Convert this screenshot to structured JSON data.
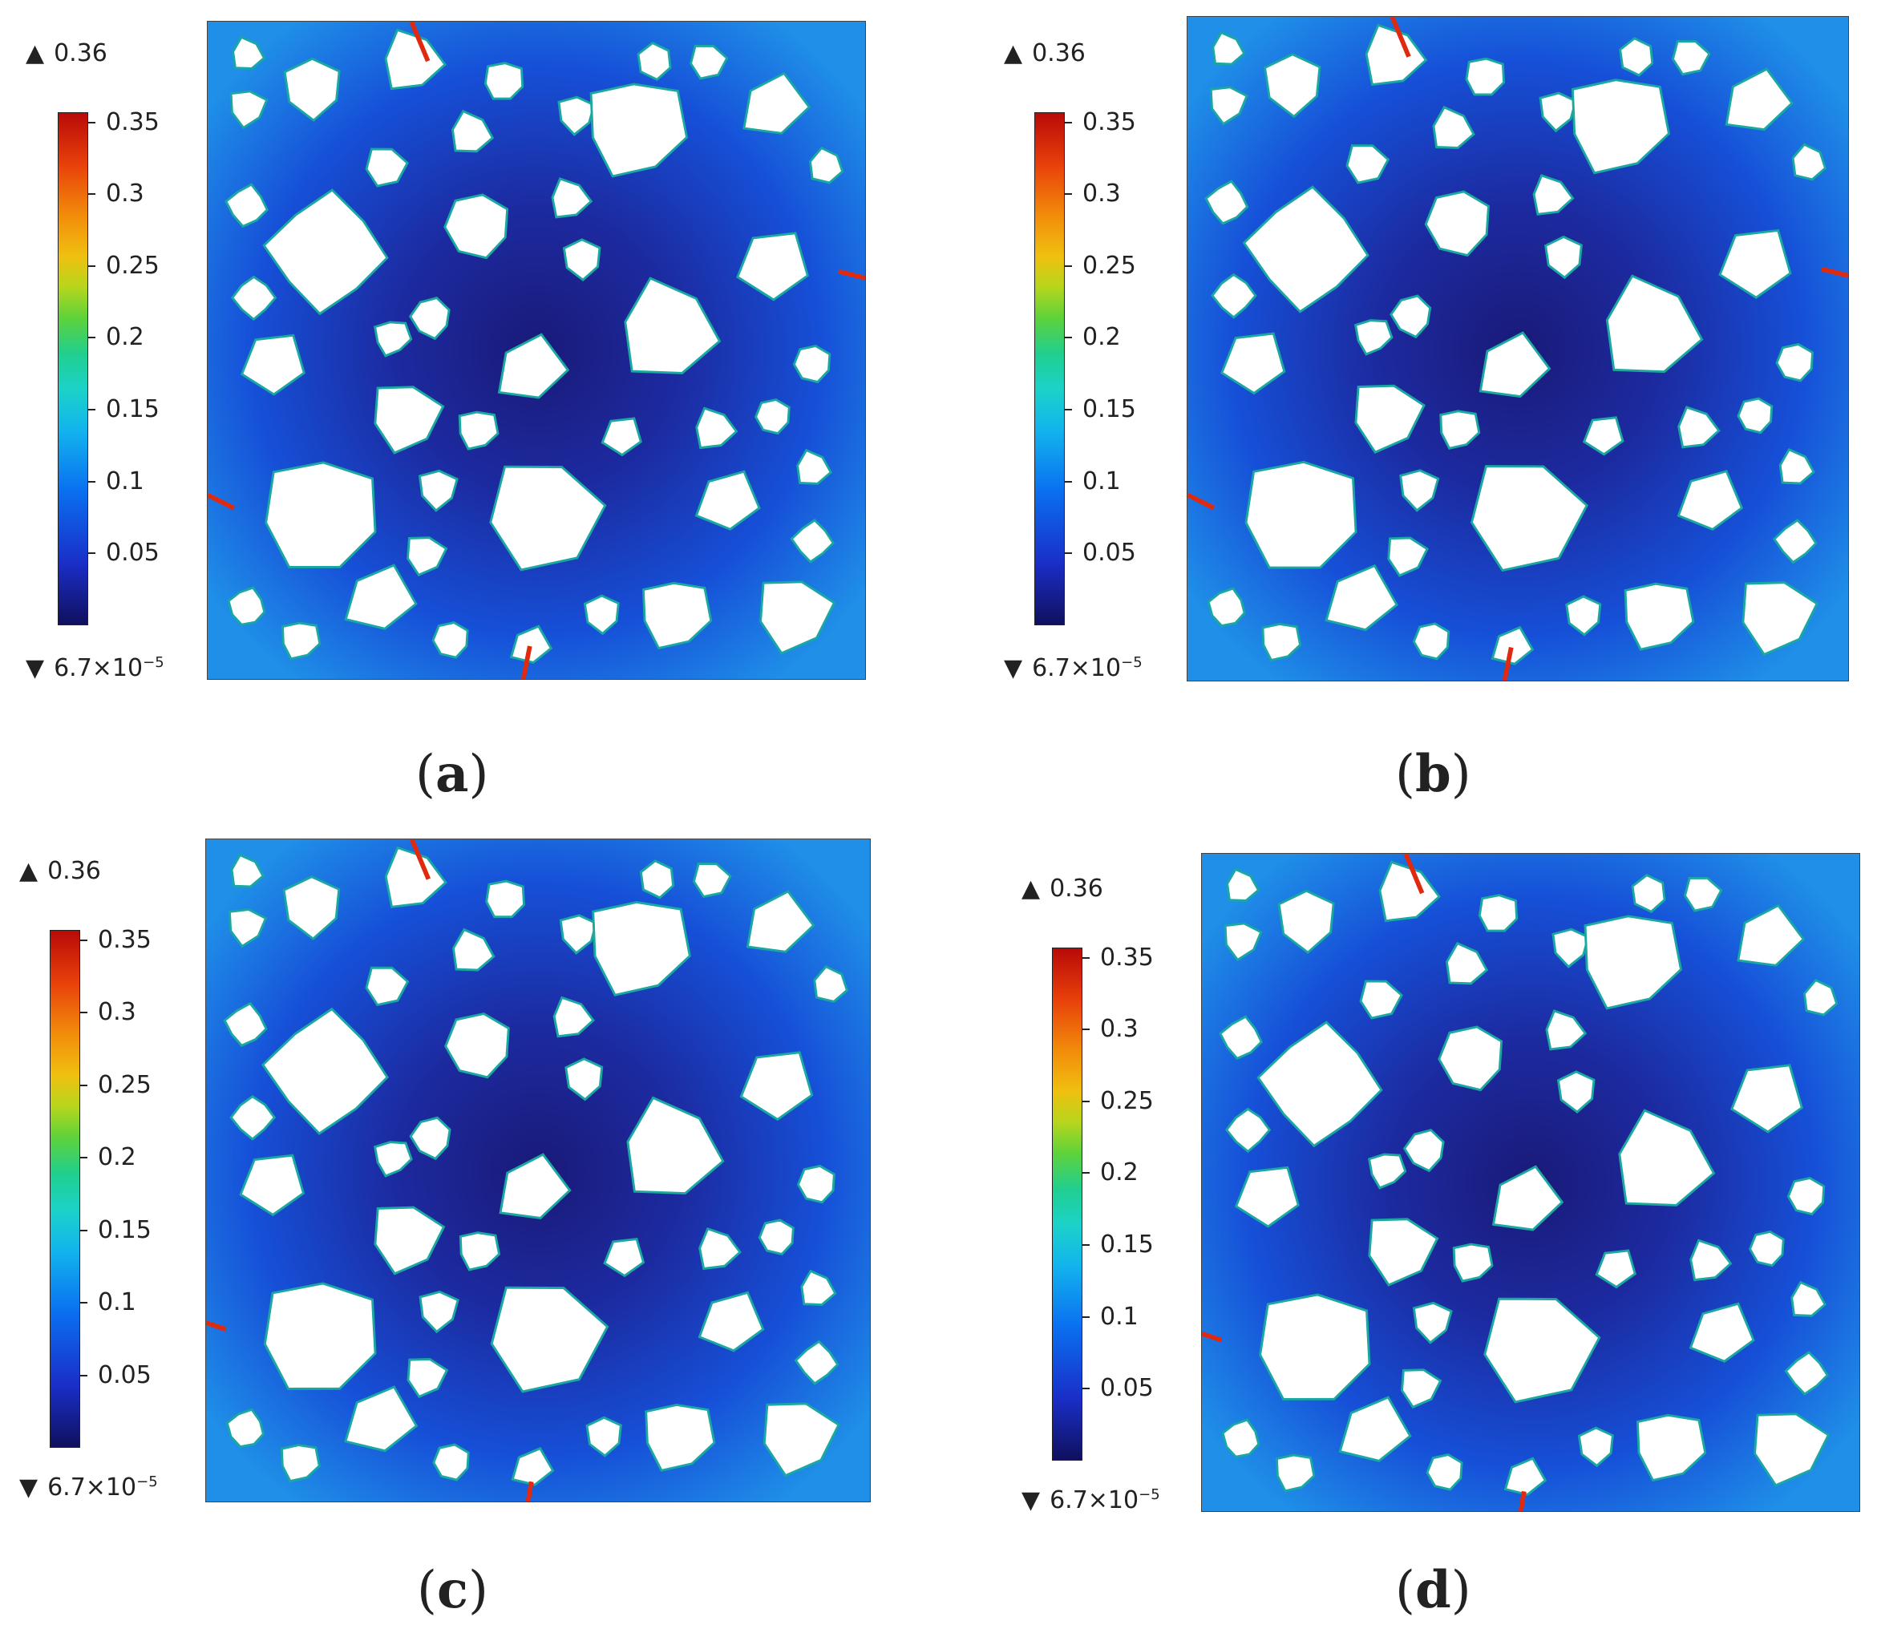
{
  "colorbar": {
    "max_label": "0.36",
    "min_label_base": "6.7×10",
    "min_label_exp": "−5",
    "ticks": [
      "0.35",
      "0.3",
      "0.25",
      "0.2",
      "0.15",
      "0.1",
      "0.05"
    ],
    "up_triangle": "▲",
    "down_triangle": "▼"
  },
  "panels": [
    {
      "caption_open": "(",
      "caption_letter": "a",
      "caption_close": ")"
    },
    {
      "caption_open": "(",
      "caption_letter": "b",
      "caption_close": ")"
    },
    {
      "caption_open": "(",
      "caption_letter": "c",
      "caption_close": ")"
    },
    {
      "caption_open": "(",
      "caption_letter": "d",
      "caption_close": ")"
    }
  ],
  "colors": {
    "field_edge": "#1f8fe8",
    "field_center": "#1a1a78",
    "aggregate": "#ffffff",
    "crack": "#e02a10"
  }
}
